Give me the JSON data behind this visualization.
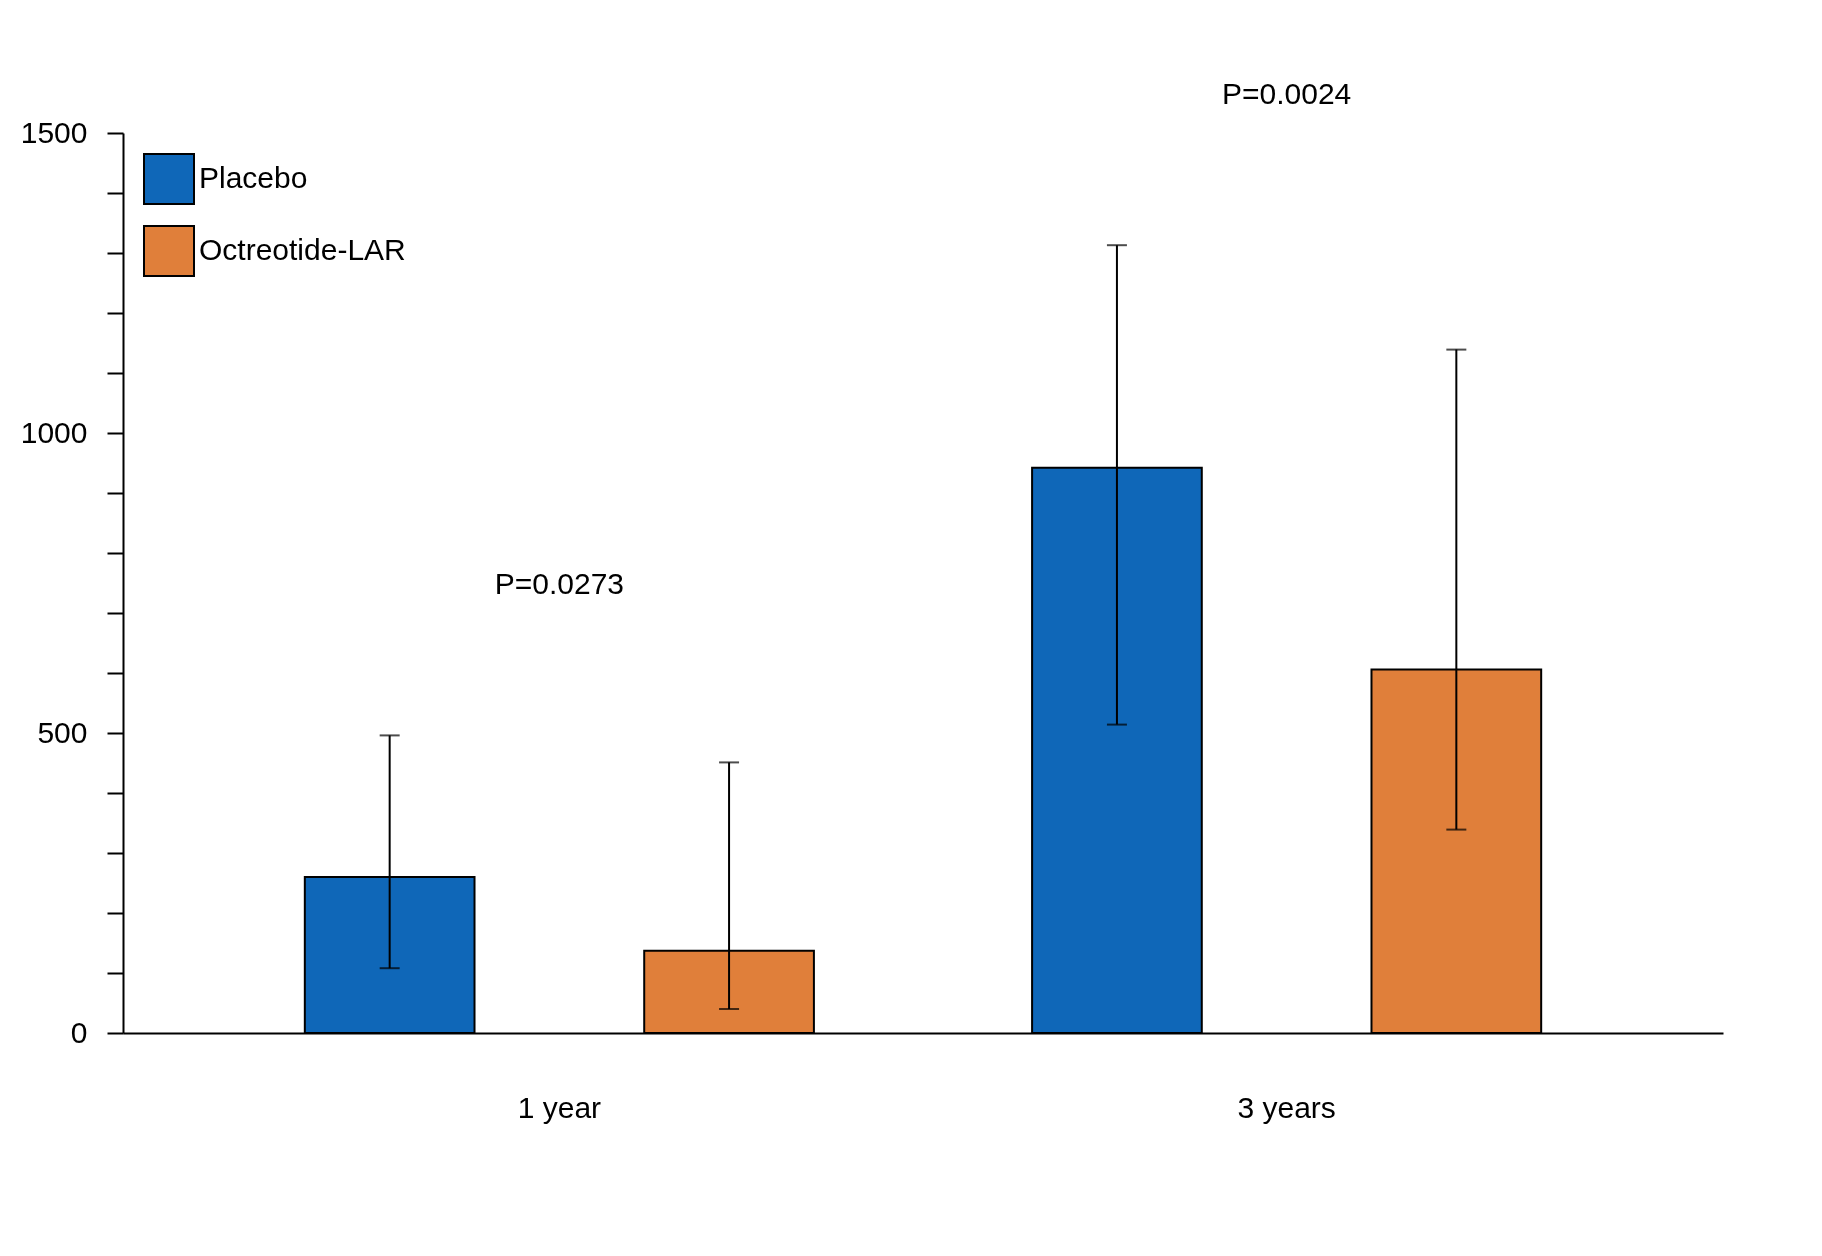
{
  "chart_data": {
    "type": "bar",
    "categories": [
      "1 year",
      "3 years"
    ],
    "series": [
      {
        "name": "Placebo",
        "color": "#0f67b8",
        "values": [
          260,
          942
        ],
        "errors": [
          [
            108,
            496
          ],
          [
            514,
            1313
          ]
        ]
      },
      {
        "name": "Octreotide-LAR",
        "color": "#e07f3a",
        "values": [
          137,
          606
        ],
        "errors": [
          [
            40,
            451
          ],
          [
            339,
            1139
          ]
        ]
      }
    ],
    "ylim": [
      0,
      1500
    ],
    "yticks": [
      0,
      {
        "value": 100,
        "label": null
      },
      {
        "value": 200,
        "label": null
      },
      {
        "value": 300,
        "label": null
      },
      {
        "value": 400,
        "label": null
      },
      500,
      {
        "value": 600,
        "label": null
      },
      {
        "value": 700,
        "label": null
      },
      {
        "value": 800,
        "label": null
      },
      {
        "value": 900,
        "label": null
      },
      1000,
      {
        "value": 1100,
        "label": null
      },
      {
        "value": 1200,
        "label": null
      },
      {
        "value": 1300,
        "label": null
      },
      {
        "value": 1400,
        "label": null
      },
      1500
    ],
    "annotations": [
      "P=0.0273",
      "P=0.0024"
    ],
    "legend": "top left",
    "grid": false
  }
}
